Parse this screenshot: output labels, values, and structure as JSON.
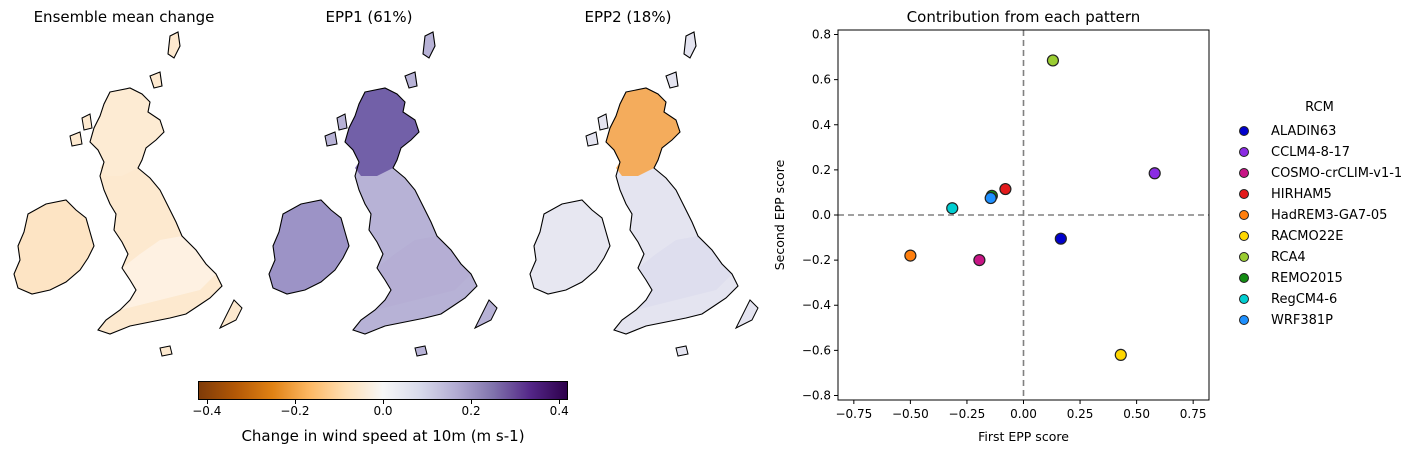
{
  "maps": [
    {
      "title": "Ensemble mean change",
      "fill": "#fde9cf",
      "north": "#fdebd3",
      "south": "#fef4ea",
      "ireland": "#fde4c4"
    },
    {
      "title": "EPP1 (61%)",
      "fill": "#b7b2d6",
      "north": "#6a57a3",
      "south": "#b3add3",
      "ireland": "#9c93c6"
    },
    {
      "title": "EPP2 (18%)",
      "fill": "#e4e4f0",
      "north": "#f5a54b",
      "south": "#dcdcec",
      "ireland": "#e7e7f1"
    }
  ],
  "colorbar": {
    "label": "Change in wind speed at 10m (m s-1)",
    "ticks": [
      "−0.4",
      "−0.2",
      "0.0",
      "0.2",
      "0.4"
    ],
    "range": [
      -0.42,
      0.42
    ],
    "colors": [
      "#7f3b08",
      "#b35806",
      "#e08214",
      "#fdb863",
      "#fee0b6",
      "#f7f7f7",
      "#d8daeb",
      "#b2abd2",
      "#8073ac",
      "#542788",
      "#2d004b"
    ]
  },
  "chart_data": {
    "type": "scatter",
    "title": "Contribution from each pattern",
    "xlabel": "First EPP score",
    "ylabel": "Second EPP score",
    "xlim": [
      -0.82,
      0.82
    ],
    "ylim": [
      -0.82,
      0.82
    ],
    "xticks": [
      -0.75,
      -0.5,
      -0.25,
      0.0,
      0.25,
      0.5,
      0.75
    ],
    "xtick_labels": [
      "−0.75",
      "−0.50",
      "−0.25",
      "0.00",
      "0.25",
      "0.50",
      "0.75"
    ],
    "yticks": [
      -0.8,
      -0.6,
      -0.4,
      -0.2,
      0.0,
      0.2,
      0.4,
      0.6,
      0.8
    ],
    "ytick_labels": [
      "−0.8",
      "−0.6",
      "−0.4",
      "−0.2",
      "0.0",
      "0.2",
      "0.4",
      "0.6",
      "0.8"
    ],
    "grid": false,
    "legend_title": "RCM",
    "legend_position": "right-outside",
    "reference_lines": {
      "x": 0,
      "y": 0
    },
    "series": [
      {
        "name": "ALADIN63",
        "color": "#0000cd",
        "x": 0.165,
        "y": -0.105
      },
      {
        "name": "CCLM4-8-17",
        "color": "#8a2be2",
        "x": 0.58,
        "y": 0.185
      },
      {
        "name": "COSMO-crCLIM-v1-1",
        "color": "#c71585",
        "x": -0.195,
        "y": -0.2
      },
      {
        "name": "HIRHAM5",
        "color": "#e31a1c",
        "x": -0.08,
        "y": 0.115
      },
      {
        "name": "HadREM3-GA7-05",
        "color": "#ff7f0e",
        "x": -0.5,
        "y": -0.18
      },
      {
        "name": "RACMO22E",
        "color": "#ffd700",
        "x": 0.43,
        "y": -0.62
      },
      {
        "name": "RCA4",
        "color": "#9acd32",
        "x": 0.13,
        "y": 0.685
      },
      {
        "name": "REMO2015",
        "color": "#138c13",
        "x": -0.14,
        "y": 0.085
      },
      {
        "name": "RegCM4-6",
        "color": "#00ced1",
        "x": -0.315,
        "y": 0.03
      },
      {
        "name": "WRF381P",
        "color": "#1e90ff",
        "x": -0.145,
        "y": 0.075
      }
    ]
  }
}
